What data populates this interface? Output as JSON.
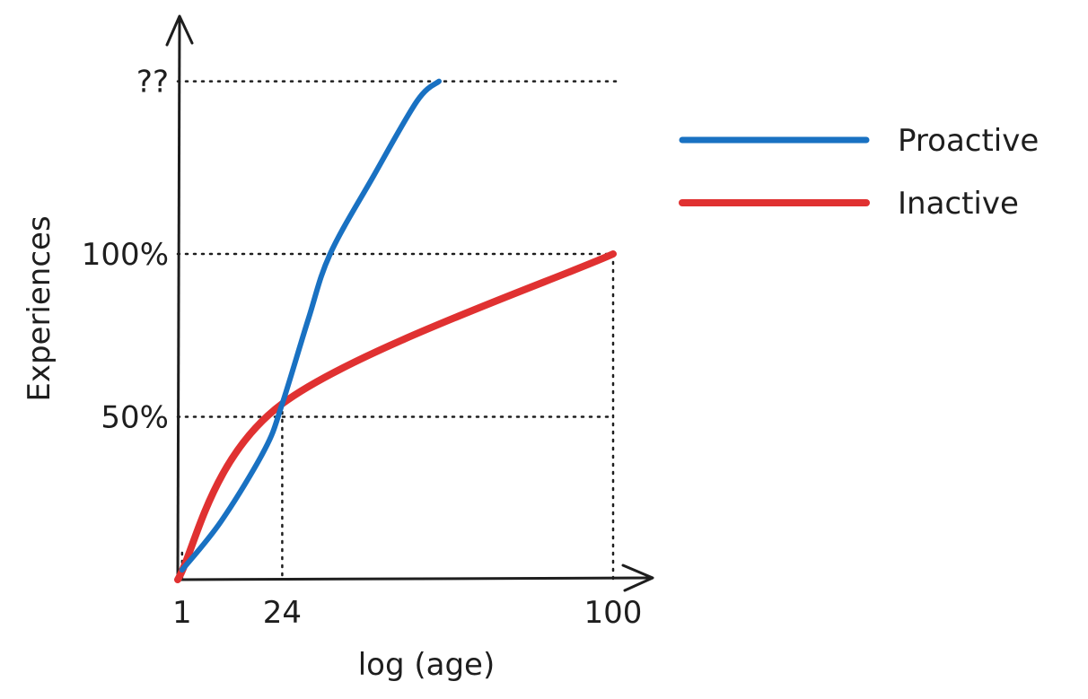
{
  "chart_data": {
    "type": "line",
    "title": "",
    "xlabel": "log (age)",
    "ylabel": "Experiences",
    "x_ticks": [
      {
        "value": 1,
        "label": "1"
      },
      {
        "value": 24,
        "label": "24"
      },
      {
        "value": 100,
        "label": "100"
      }
    ],
    "y_ticks": [
      {
        "value": 50,
        "label": "50%"
      },
      {
        "value": 100,
        "label": "100%"
      },
      {
        "value": 153,
        "label": "??"
      }
    ],
    "xlim": [
      0,
      108
    ],
    "ylim": [
      0,
      170
    ],
    "legend_position": "right",
    "grid": false,
    "series": [
      {
        "name": "Proactive",
        "color": "#1971c2",
        "points": [
          [
            1,
            3
          ],
          [
            10,
            18
          ],
          [
            20,
            40
          ],
          [
            24,
            54
          ],
          [
            30,
            80
          ],
          [
            35,
            100
          ],
          [
            45,
            124
          ],
          [
            55,
            147
          ],
          [
            60,
            153
          ]
        ]
      },
      {
        "name": "Inactive",
        "color": "#e03131",
        "points": [
          [
            0,
            0
          ],
          [
            24,
            54
          ],
          [
            100,
            100
          ]
        ]
      }
    ]
  }
}
